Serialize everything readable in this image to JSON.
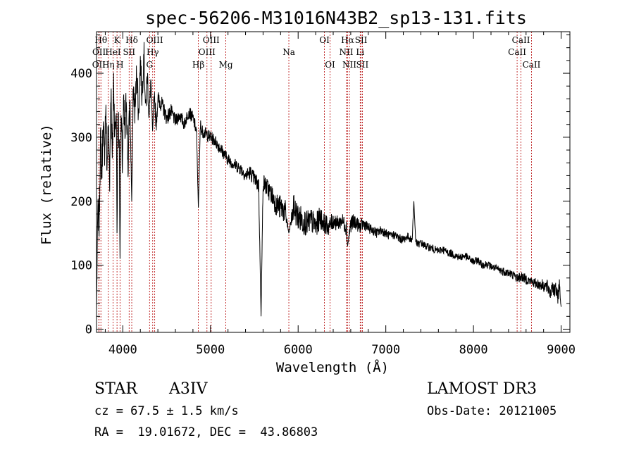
{
  "chart_data": {
    "type": "line",
    "title": "spec-56206-M31016N43B2_sp13-131.fits",
    "xlabel": "Wavelength (Å)",
    "ylabel": "Flux (relative)",
    "xlim": [
      3700,
      9100
    ],
    "ylim": [
      -5,
      465
    ],
    "xticks": [
      4000,
      5000,
      6000,
      7000,
      8000,
      9000
    ],
    "xtick_labels": [
      "4000",
      "5000",
      "6000",
      "7000",
      "8000",
      "9000"
    ],
    "yticks": [
      0,
      100,
      200,
      300,
      400
    ],
    "ytick_labels": [
      "0",
      "100",
      "200",
      "300",
      "400"
    ],
    "grid": false,
    "spectral_lines": [
      {
        "name": "OII",
        "wavelength": 3727,
        "row": 3
      },
      {
        "name": "Hθ",
        "wavelength": 3750,
        "row": 1
      },
      {
        "name": "OII",
        "wavelength": 3729,
        "row": 2
      },
      {
        "name": "Hη",
        "wavelength": 3835,
        "row": 3
      },
      {
        "name": "HeI",
        "wavelength": 3889,
        "row": 2
      },
      {
        "name": "K",
        "wavelength": 3934,
        "row": 1
      },
      {
        "name": "H",
        "wavelength": 3968,
        "row": 3
      },
      {
        "name": "SII",
        "wavelength": 4072,
        "row": 2
      },
      {
        "name": "Hδ",
        "wavelength": 4102,
        "row": 1
      },
      {
        "name": "G",
        "wavelength": 4305,
        "row": 3
      },
      {
        "name": "Hγ",
        "wavelength": 4341,
        "row": 2
      },
      {
        "name": "OIII",
        "wavelength": 4364,
        "row": 1
      },
      {
        "name": "Hβ",
        "wavelength": 4862,
        "row": 3
      },
      {
        "name": "OIII",
        "wavelength": 4960,
        "row": 2
      },
      {
        "name": "OIII",
        "wavelength": 5008,
        "row": 1
      },
      {
        "name": "Mg",
        "wavelength": 5175,
        "row": 3
      },
      {
        "name": "Na",
        "wavelength": 5894,
        "row": 2
      },
      {
        "name": "OI",
        "wavelength": 6300,
        "row": 1
      },
      {
        "name": "OI",
        "wavelength": 6364,
        "row": 3
      },
      {
        "name": "NII",
        "wavelength": 6549,
        "row": 2
      },
      {
        "name": "Hα",
        "wavelength": 6564,
        "row": 1
      },
      {
        "name": "NII",
        "wavelength": 6585,
        "row": 3
      },
      {
        "name": "Li",
        "wavelength": 6708,
        "row": 2
      },
      {
        "name": "SII",
        "wavelength": 6718,
        "row": 1
      },
      {
        "name": "SII",
        "wavelength": 6733,
        "row": 3
      },
      {
        "name": "CaII",
        "wavelength": 8498,
        "row": 2
      },
      {
        "name": "CaII",
        "wavelength": 8542,
        "row": 1
      },
      {
        "name": "CaII",
        "wavelength": 8662,
        "row": 3
      }
    ],
    "series": [
      {
        "name": "flux",
        "x": [
          3700,
          3715,
          3730,
          3745,
          3760,
          3775,
          3790,
          3805,
          3820,
          3835,
          3850,
          3865,
          3880,
          3895,
          3910,
          3925,
          3934,
          3945,
          3960,
          3968,
          3980,
          3995,
          4010,
          4025,
          4040,
          4060,
          4080,
          4102,
          4120,
          4140,
          4160,
          4180,
          4200,
          4220,
          4240,
          4260,
          4280,
          4300,
          4320,
          4340,
          4360,
          4380,
          4400,
          4450,
          4500,
          4550,
          4600,
          4650,
          4700,
          4750,
          4800,
          4840,
          4862,
          4885,
          4900,
          4950,
          5000,
          5050,
          5100,
          5150,
          5200,
          5250,
          5300,
          5350,
          5400,
          5450,
          5500,
          5550,
          5577,
          5600,
          5650,
          5700,
          5750,
          5800,
          5850,
          5894,
          5950,
          6000,
          6050,
          6100,
          6150,
          6200,
          6250,
          6300,
          6350,
          6400,
          6450,
          6500,
          6550,
          6564,
          6600,
          6650,
          6700,
          6750,
          6800,
          6850,
          6900,
          6950,
          7000,
          7050,
          7100,
          7150,
          7200,
          7250,
          7300,
          7320,
          7340,
          7360,
          7400,
          7450,
          7500,
          7550,
          7600,
          7650,
          7700,
          7750,
          7800,
          7850,
          7900,
          7950,
          8000,
          8050,
          8100,
          8150,
          8200,
          8250,
          8300,
          8350,
          8400,
          8450,
          8500,
          8550,
          8600,
          8650,
          8700,
          8750,
          8800,
          8850,
          8880,
          8900,
          8920,
          8940,
          8960,
          8980,
          8990,
          9000
        ],
        "y": [
          30,
          190,
          160,
          300,
          240,
          320,
          270,
          350,
          250,
          320,
          240,
          380,
          260,
          390,
          300,
          350,
          150,
          340,
          280,
          110,
          330,
          260,
          350,
          300,
          370,
          250,
          360,
          200,
          380,
          340,
          410,
          330,
          420,
          360,
          440,
          340,
          400,
          330,
          390,
          310,
          370,
          320,
          360,
          350,
          330,
          340,
          325,
          335,
          320,
          340,
          330,
          310,
          190,
          320,
          310,
          305,
          300,
          295,
          285,
          275,
          265,
          260,
          255,
          250,
          240,
          245,
          235,
          225,
          20,
          230,
          220,
          210,
          195,
          190,
          185,
          150,
          190,
          175,
          170,
          165,
          170,
          160,
          175,
          165,
          160,
          170,
          165,
          170,
          160,
          130,
          165,
          168,
          160,
          165,
          158,
          155,
          150,
          155,
          150,
          145,
          148,
          142,
          140,
          145,
          138,
          200,
          140,
          132,
          135,
          130,
          128,
          125,
          122,
          125,
          120,
          118,
          115,
          112,
          115,
          110,
          105,
          108,
          100,
          102,
          98,
          95,
          92,
          90,
          88,
          85,
          80,
          82,
          78,
          75,
          72,
          70,
          68,
          65,
          55,
          72,
          58,
          62,
          48,
          70,
          50,
          35
        ],
        "noise_amplitude": [
          0,
          25,
          25,
          30,
          30,
          30,
          30,
          30,
          30,
          30,
          30,
          30,
          30,
          30,
          30,
          30,
          0,
          30,
          30,
          0,
          30,
          30,
          30,
          30,
          30,
          28,
          28,
          0,
          26,
          26,
          24,
          24,
          22,
          22,
          22,
          20,
          20,
          18,
          18,
          0,
          16,
          16,
          14,
          12,
          12,
          12,
          10,
          10,
          10,
          10,
          10,
          10,
          0,
          10,
          10,
          10,
          10,
          10,
          10,
          10,
          10,
          10,
          10,
          10,
          10,
          12,
          12,
          14,
          0,
          14,
          16,
          16,
          18,
          20,
          20,
          0,
          22,
          22,
          22,
          20,
          20,
          20,
          18,
          16,
          14,
          14,
          12,
          12,
          14,
          0,
          14,
          12,
          10,
          10,
          8,
          8,
          8,
          8,
          7,
          7,
          7,
          7,
          7,
          6,
          6,
          0,
          6,
          6,
          6,
          6,
          6,
          6,
          6,
          6,
          6,
          6,
          6,
          6,
          6,
          6,
          6,
          6,
          6,
          6,
          6,
          6,
          7,
          7,
          7,
          7,
          8,
          8,
          8,
          8,
          8,
          9,
          10,
          12,
          12,
          12,
          12,
          12,
          12,
          12,
          6,
          0
        ]
      }
    ]
  },
  "info": {
    "object_class": "STAR",
    "subclass": "A3IV",
    "survey": "LAMOST DR3",
    "redshift_line": "cz = 67.5 ± 1.5 km/s",
    "obs_date_line": "Obs-Date: 20121005",
    "coords_line": "RA =  19.01672, DEC =  43.86803"
  },
  "colors": {
    "line_marker": "#b40000",
    "spectrum": "#000000",
    "axes": "#000000"
  }
}
